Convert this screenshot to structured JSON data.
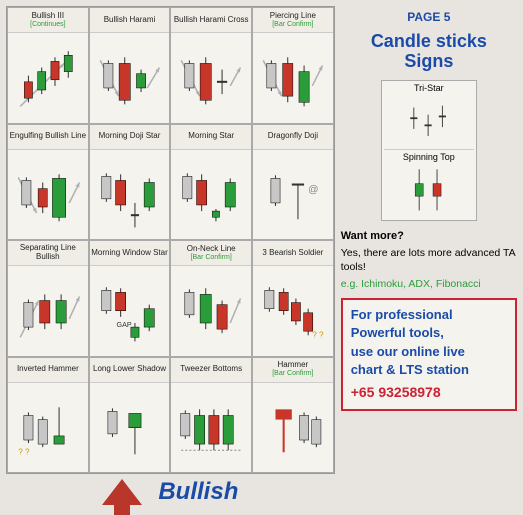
{
  "page_label": "PAGE 5",
  "main_title_line1": "Candle sticks",
  "main_title_line2": "Signs",
  "footer_label": "Bullish",
  "colors": {
    "bullish_candle": "#2a9d3a",
    "bearish_candle": "#c8362a",
    "shadow_candle": "#c7c7c7",
    "wick": "#333333",
    "arrow": "#b0b0b0",
    "title_blue": "#1a4ba8",
    "confirm_green": "#2a9d3a",
    "promo_red": "#c8362a"
  },
  "patterns": [
    {
      "title": "Bullish III",
      "sub": "[Continues]",
      "type": "bull3"
    },
    {
      "title": "Bullish Harami",
      "sub": "",
      "type": "harami"
    },
    {
      "title": "Bullish Harami Cross",
      "sub": "",
      "type": "harami_cross"
    },
    {
      "title": "Piercing Line",
      "sub": "[Bar Confirm]",
      "type": "piercing"
    },
    {
      "title": "Engulfing Bullish Line",
      "sub": "",
      "type": "engulf"
    },
    {
      "title": "Morning Doji Star",
      "sub": "",
      "type": "morn_doji"
    },
    {
      "title": "Morning Star",
      "sub": "",
      "type": "morn_star"
    },
    {
      "title": "Dragonfly Doji",
      "sub": "",
      "type": "dragonfly"
    },
    {
      "title": "Separating Line Bullish",
      "sub": "",
      "type": "separating"
    },
    {
      "title": "Morning Window Star",
      "sub": "",
      "type": "window"
    },
    {
      "title": "On-Neck Line",
      "sub": "[Bar Confirm]",
      "type": "onneck"
    },
    {
      "title": "3 Bearish Soldier",
      "sub": "",
      "type": "bear3"
    },
    {
      "title": "Inverted Hammer",
      "sub": "",
      "type": "inv_hammer"
    },
    {
      "title": "Long Lower Shadow",
      "sub": "",
      "type": "lower_shadow"
    },
    {
      "title": "Tweezer Bottoms",
      "sub": "",
      "type": "tweezer"
    },
    {
      "title": "Hammer",
      "sub": "[Bar Confirm]",
      "type": "hammer"
    }
  ],
  "mini_patterns": [
    {
      "title": "Tri-Star",
      "type": "tristar"
    },
    {
      "title": "Spinning Top",
      "type": "spinning"
    }
  ],
  "want_more": "Want more?",
  "want_sub": "Yes, there are lots more advanced TA tools!",
  "eg_line": "e.g. Ichimoku, ADX, Fibonacci",
  "promo": {
    "l1": "For  professional",
    "l2": "Powerful  tools,",
    "l3": "use our online live",
    "l4": "chart & LTS station",
    "phone": "+65 93258978"
  }
}
